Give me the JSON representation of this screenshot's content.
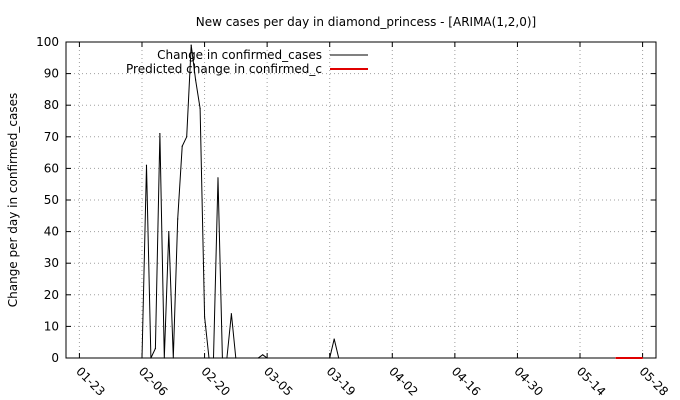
{
  "chart_data": {
    "type": "line",
    "title": "New cases per day in diamond_princess -  [ARIMA(1,2,0)]",
    "xlabel": "",
    "ylabel": "Change per day in confirmed_cases",
    "x_tick_labels": [
      "01-23",
      "02-06",
      "02-20",
      "03-05",
      "03-19",
      "04-02",
      "04-16",
      "04-30",
      "05-14",
      "05-28"
    ],
    "x_tick_values": [
      0,
      14,
      28,
      42,
      56,
      70,
      84,
      98,
      112,
      126
    ],
    "xlim": [
      -3,
      129
    ],
    "ylim": [
      0,
      100
    ],
    "y_ticks": [
      0,
      10,
      20,
      30,
      40,
      50,
      60,
      70,
      80,
      90,
      100
    ],
    "grid": true,
    "legend_position": "top-left",
    "series": [
      {
        "name": "Change in confirmed_cases",
        "color": "#000000",
        "points": [
          [
            14,
            0
          ],
          [
            15,
            61
          ],
          [
            16,
            0
          ],
          [
            17,
            3
          ],
          [
            18,
            71
          ],
          [
            19,
            0
          ],
          [
            20,
            40
          ],
          [
            21,
            0
          ],
          [
            22,
            44
          ],
          [
            23,
            67
          ],
          [
            24,
            70
          ],
          [
            25,
            99
          ],
          [
            26,
            88
          ],
          [
            27,
            79
          ],
          [
            28,
            13
          ],
          [
            29,
            0
          ],
          [
            30,
            0
          ],
          [
            31,
            57
          ],
          [
            32,
            0
          ],
          [
            33,
            0
          ],
          [
            34,
            14
          ],
          [
            35,
            0
          ],
          [
            40,
            0
          ],
          [
            41,
            1
          ],
          [
            42,
            0
          ],
          [
            56,
            0
          ],
          [
            57,
            6
          ],
          [
            58,
            0
          ]
        ]
      },
      {
        "name": "Predicted change in confirmed_c",
        "color": "#e00000",
        "points": [
          [
            120,
            0
          ],
          [
            126,
            0
          ]
        ]
      }
    ]
  }
}
